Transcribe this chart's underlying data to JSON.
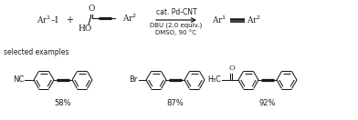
{
  "bg_color": "#ffffff",
  "lc": "#1a1a1a",
  "figsize": [
    3.92,
    1.32
  ],
  "dpi": 100,
  "selected_label": "selected examples",
  "yields": [
    "58%",
    "87%",
    "92%"
  ],
  "cat": "cat. Pd-CNT",
  "cond1": "DBU (2.0 equiv.)",
  "cond2": "DMSO, 90 °C"
}
